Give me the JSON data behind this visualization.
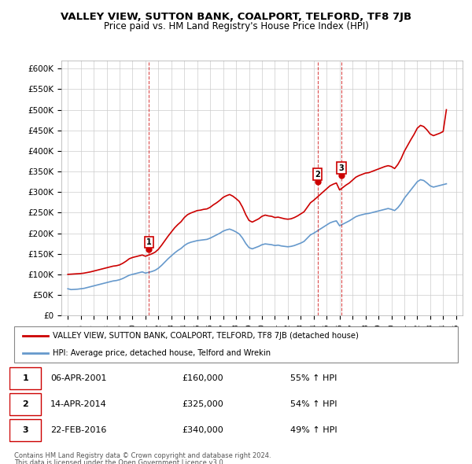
{
  "title": "VALLEY VIEW, SUTTON BANK, COALPORT, TELFORD, TF8 7JB",
  "subtitle": "Price paid vs. HM Land Registry's House Price Index (HPI)",
  "ylim": [
    0,
    620000
  ],
  "yticks": [
    0,
    50000,
    100000,
    150000,
    200000,
    250000,
    300000,
    350000,
    400000,
    450000,
    500000,
    550000,
    600000
  ],
  "xlim_start": 1994.5,
  "xlim_end": 2025.5,
  "red_line_color": "#cc0000",
  "blue_line_color": "#6699cc",
  "sale_marker_color": "#cc0000",
  "sale_box_color": "#cc0000",
  "sales": [
    {
      "label": "1",
      "year": 2001.27,
      "price": 160000
    },
    {
      "label": "2",
      "year": 2014.29,
      "price": 325000
    },
    {
      "label": "3",
      "year": 2016.13,
      "price": 340000
    }
  ],
  "sale_table": [
    {
      "num": "1",
      "date": "06-APR-2001",
      "price": "£160,000",
      "change": "55% ↑ HPI"
    },
    {
      "num": "2",
      "date": "14-APR-2014",
      "price": "£325,000",
      "change": "54% ↑ HPI"
    },
    {
      "num": "3",
      "date": "22-FEB-2016",
      "price": "£340,000",
      "change": "49% ↑ HPI"
    }
  ],
  "legend_red": "VALLEY VIEW, SUTTON BANK, COALPORT, TELFORD, TF8 7JB (detached house)",
  "legend_blue": "HPI: Average price, detached house, Telford and Wrekin",
  "footer1": "Contains HM Land Registry data © Crown copyright and database right 2024.",
  "footer2": "This data is licensed under the Open Government Licence v3.0.",
  "hpi_data_x": [
    1995.0,
    1995.25,
    1995.5,
    1995.75,
    1996.0,
    1996.25,
    1996.5,
    1996.75,
    1997.0,
    1997.25,
    1997.5,
    1997.75,
    1998.0,
    1998.25,
    1998.5,
    1998.75,
    1999.0,
    1999.25,
    1999.5,
    1999.75,
    2000.0,
    2000.25,
    2000.5,
    2000.75,
    2001.0,
    2001.25,
    2001.5,
    2001.75,
    2002.0,
    2002.25,
    2002.5,
    2002.75,
    2003.0,
    2003.25,
    2003.5,
    2003.75,
    2004.0,
    2004.25,
    2004.5,
    2004.75,
    2005.0,
    2005.25,
    2005.5,
    2005.75,
    2006.0,
    2006.25,
    2006.5,
    2006.75,
    2007.0,
    2007.25,
    2007.5,
    2007.75,
    2008.0,
    2008.25,
    2008.5,
    2008.75,
    2009.0,
    2009.25,
    2009.5,
    2009.75,
    2010.0,
    2010.25,
    2010.5,
    2010.75,
    2011.0,
    2011.25,
    2011.5,
    2011.75,
    2012.0,
    2012.25,
    2012.5,
    2012.75,
    2013.0,
    2013.25,
    2013.5,
    2013.75,
    2014.0,
    2014.25,
    2014.5,
    2014.75,
    2015.0,
    2015.25,
    2015.5,
    2015.75,
    2016.0,
    2016.25,
    2016.5,
    2016.75,
    2017.0,
    2017.25,
    2017.5,
    2017.75,
    2018.0,
    2018.25,
    2018.5,
    2018.75,
    2019.0,
    2019.25,
    2019.5,
    2019.75,
    2020.0,
    2020.25,
    2020.5,
    2020.75,
    2021.0,
    2021.25,
    2021.5,
    2021.75,
    2022.0,
    2022.25,
    2022.5,
    2022.75,
    2023.0,
    2023.25,
    2023.5,
    2023.75,
    2024.0,
    2024.25
  ],
  "hpi_data_y": [
    65000,
    63000,
    63500,
    64000,
    65000,
    66000,
    68000,
    70000,
    72000,
    74000,
    76000,
    78000,
    80000,
    82000,
    84000,
    85000,
    87000,
    90000,
    94000,
    98000,
    100000,
    102000,
    104000,
    106000,
    103000,
    105000,
    107000,
    110000,
    115000,
    122000,
    130000,
    138000,
    145000,
    152000,
    158000,
    163000,
    170000,
    175000,
    178000,
    180000,
    182000,
    183000,
    184000,
    185000,
    188000,
    192000,
    196000,
    200000,
    205000,
    208000,
    210000,
    207000,
    203000,
    198000,
    188000,
    175000,
    165000,
    162000,
    165000,
    168000,
    172000,
    174000,
    173000,
    172000,
    170000,
    171000,
    169000,
    168000,
    167000,
    168000,
    170000,
    173000,
    176000,
    180000,
    188000,
    196000,
    200000,
    205000,
    210000,
    215000,
    220000,
    225000,
    228000,
    230000,
    218000,
    222000,
    226000,
    230000,
    235000,
    240000,
    243000,
    245000,
    247000,
    248000,
    250000,
    252000,
    254000,
    256000,
    258000,
    260000,
    258000,
    255000,
    262000,
    272000,
    285000,
    295000,
    305000,
    315000,
    325000,
    330000,
    328000,
    322000,
    315000,
    312000,
    314000,
    316000,
    318000,
    320000
  ],
  "red_data_x": [
    1995.0,
    1995.25,
    1995.5,
    1995.75,
    1996.0,
    1996.25,
    1996.5,
    1996.75,
    1997.0,
    1997.25,
    1997.5,
    1997.75,
    1998.0,
    1998.25,
    1998.5,
    1998.75,
    1999.0,
    1999.25,
    1999.5,
    1999.75,
    2000.0,
    2000.25,
    2000.5,
    2000.75,
    2001.0,
    2001.25,
    2001.5,
    2001.75,
    2002.0,
    2002.25,
    2002.5,
    2002.75,
    2003.0,
    2003.25,
    2003.5,
    2003.75,
    2004.0,
    2004.25,
    2004.5,
    2004.75,
    2005.0,
    2005.25,
    2005.5,
    2005.75,
    2006.0,
    2006.25,
    2006.5,
    2006.75,
    2007.0,
    2007.25,
    2007.5,
    2007.75,
    2008.0,
    2008.25,
    2008.5,
    2008.75,
    2009.0,
    2009.25,
    2009.5,
    2009.75,
    2010.0,
    2010.25,
    2010.5,
    2010.75,
    2011.0,
    2011.25,
    2011.5,
    2011.75,
    2012.0,
    2012.25,
    2012.5,
    2012.75,
    2013.0,
    2013.25,
    2013.5,
    2013.75,
    2014.0,
    2014.25,
    2014.5,
    2014.75,
    2015.0,
    2015.25,
    2015.5,
    2015.75,
    2016.0,
    2016.25,
    2016.5,
    2016.75,
    2017.0,
    2017.25,
    2017.5,
    2017.75,
    2018.0,
    2018.25,
    2018.5,
    2018.75,
    2019.0,
    2019.25,
    2019.5,
    2019.75,
    2020.0,
    2020.25,
    2020.5,
    2020.75,
    2021.0,
    2021.25,
    2021.5,
    2021.75,
    2022.0,
    2022.25,
    2022.5,
    2022.75,
    2023.0,
    2023.25,
    2023.5,
    2023.75,
    2024.0,
    2024.25
  ],
  "red_data_y": [
    100000,
    100500,
    101000,
    101500,
    102000,
    103000,
    104500,
    106000,
    108000,
    110000,
    112000,
    114000,
    116000,
    118000,
    120000,
    121000,
    123000,
    127000,
    132000,
    138000,
    141000,
    143000,
    145000,
    147000,
    144000,
    147000,
    150000,
    154000,
    161000,
    171000,
    182000,
    193000,
    203000,
    213000,
    221000,
    228000,
    238000,
    245000,
    249000,
    252000,
    255000,
    256000,
    258000,
    259000,
    263000,
    269000,
    274000,
    280000,
    287000,
    291000,
    294000,
    290000,
    284000,
    277000,
    263000,
    245000,
    231000,
    227000,
    231000,
    235000,
    241000,
    244000,
    242000,
    241000,
    238000,
    239000,
    237000,
    235000,
    234000,
    235000,
    238000,
    242000,
    247000,
    252000,
    263000,
    274000,
    280000,
    287000,
    294000,
    301000,
    308000,
    315000,
    319000,
    322000,
    305000,
    311000,
    317000,
    322000,
    329000,
    336000,
    340000,
    343000,
    346000,
    347000,
    350000,
    353000,
    356000,
    359000,
    362000,
    364000,
    362000,
    357000,
    367000,
    381000,
    399000,
    413000,
    427000,
    440000,
    455000,
    462000,
    459000,
    451000,
    441000,
    437000,
    440000,
    443000,
    447000,
    500000
  ]
}
